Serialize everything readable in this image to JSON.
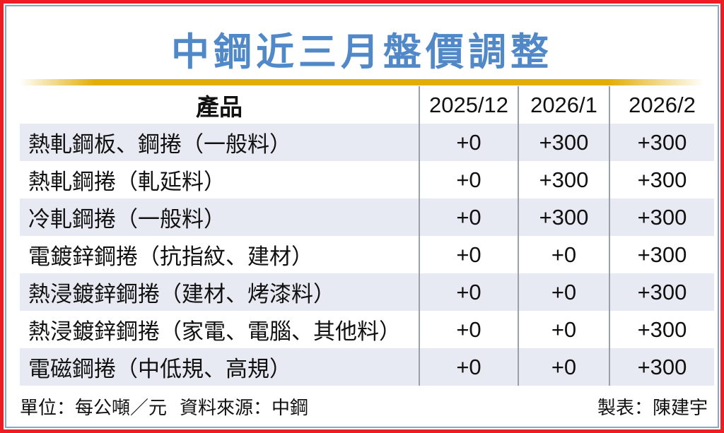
{
  "title": "中鋼近三月盤價調整",
  "chart_data": {
    "type": "table",
    "title": "中鋼近三月盤價調整",
    "columns": [
      "產品",
      "2025/12",
      "2026/1",
      "2026/2"
    ],
    "rows": [
      [
        "熱軋鋼板、鋼捲（一般料）",
        "+0",
        "+300",
        "+300"
      ],
      [
        "熱軋鋼捲（軋延料）",
        "+0",
        "+300",
        "+300"
      ],
      [
        "冷軋鋼捲（一般料）",
        "+0",
        "+300",
        "+300"
      ],
      [
        "電鍍鋅鋼捲（抗指紋、建材）",
        "+0",
        "+0",
        "+300"
      ],
      [
        "熱浸鍍鋅鋼捲（建材、烤漆料）",
        "+0",
        "+0",
        "+300"
      ],
      [
        "熱浸鍍鋅鋼捲（家電、電腦、其他料）",
        "+0",
        "+0",
        "+300"
      ],
      [
        "電磁鋼捲（中低規、高規）",
        "+0",
        "+0",
        "+300"
      ]
    ],
    "unit": "每公噸／元",
    "source": "中鋼",
    "credit": "陳建宇"
  },
  "footer": {
    "unit_label": "單位：每公噸／元",
    "source_label": "資料來源：中鋼",
    "credit_label": "製表：陳建宇"
  },
  "colors": {
    "frame_red": "#ee1c23",
    "inner_border_blue": "#8aa6c4",
    "title_blue": "#5189c8",
    "gold_bar": "#e2ad05",
    "row_stripe": "#e7eaf2",
    "column_divider": "#9aa0a6",
    "text": "#111111"
  }
}
